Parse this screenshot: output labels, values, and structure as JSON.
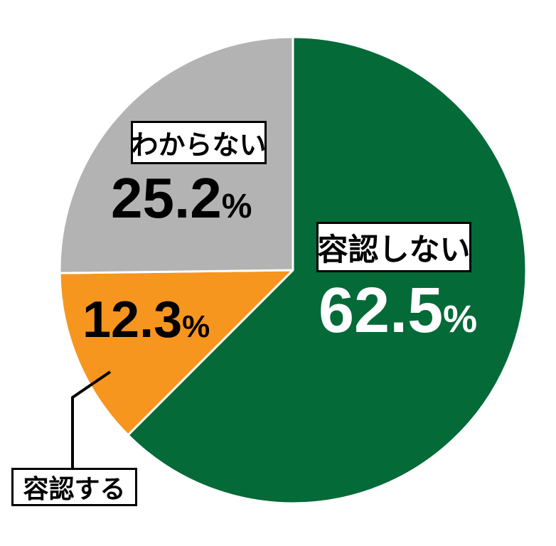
{
  "chart_data": {
    "type": "pie",
    "title": "",
    "start_angle_deg": 0,
    "direction": "clockwise",
    "stroke_color": "#FFFFFF",
    "stroke_width": 3,
    "background_color": "#FFFFFF",
    "legend_position": "none",
    "segments": [
      {
        "label": "容認しない",
        "value": 62.5,
        "value_text": "62.5",
        "unit": "%",
        "color": "#046A38",
        "value_label_color": "#FFFFFF"
      },
      {
        "label": "容認する",
        "value": 12.3,
        "value_text": "12.3",
        "unit": "%",
        "color": "#F6961E",
        "value_label_color": "#000000"
      },
      {
        "label": "わからない",
        "value": 25.2,
        "value_text": "25.2",
        "unit": "%",
        "color": "#B3B3B3",
        "value_label_color": "#000000"
      }
    ]
  }
}
